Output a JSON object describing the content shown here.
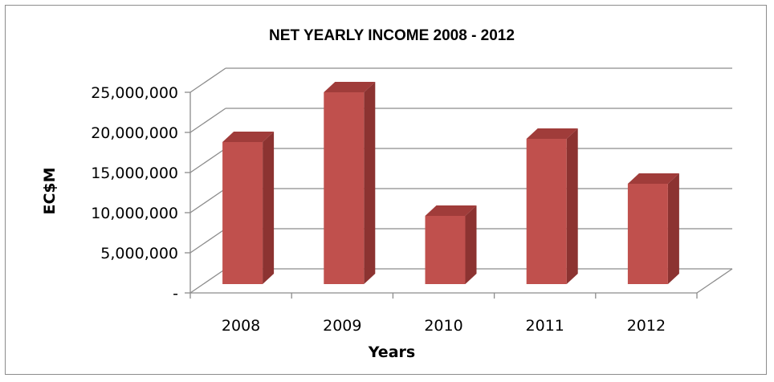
{
  "chart_data": {
    "type": "bar",
    "title": "NET YEARLY INCOME 2008 - 2012",
    "xlabel": "Years",
    "ylabel": "EC$M",
    "categories": [
      "2008",
      "2009",
      "2010",
      "2011",
      "2012"
    ],
    "values": [
      17700000,
      23900000,
      8500000,
      18100000,
      12500000
    ],
    "ylim": [
      0,
      25000000
    ],
    "yticks": [
      "-",
      "5,000,000",
      "10,000,000",
      "15,000,000",
      "20,000,000",
      "25,000,000"
    ],
    "grid": true,
    "legend": "none",
    "style": "3d-column"
  },
  "colors": {
    "bar_front": "#c0504d",
    "bar_side": "#8c3331",
    "bar_top": "#a03c3a",
    "gridline": "#8c8c8c"
  }
}
